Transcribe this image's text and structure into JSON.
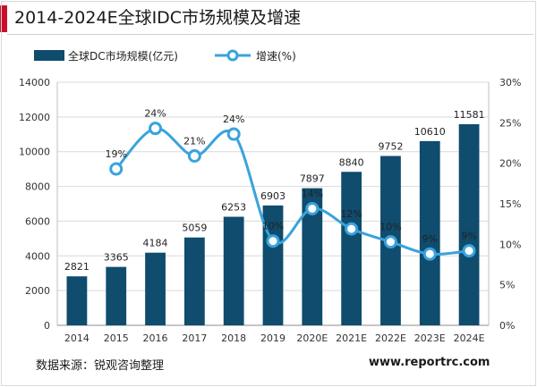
{
  "title": "2014-2024E全球IDC市场规模及增速",
  "footer": {
    "source": "数据来源：锐观咨询整理",
    "website": "www.reportrc.com"
  },
  "colors": {
    "bar": "#0f4c6e",
    "line": "#39a3dc",
    "accent": "#c8102e"
  },
  "chart_data": {
    "type": "bar",
    "categories": [
      "2014",
      "2015",
      "2016",
      "2017",
      "2018",
      "2019",
      "2020E",
      "2021E",
      "2022E",
      "2023E",
      "2024E"
    ],
    "series": [
      {
        "name": "全球DC市场规模(亿元)",
        "kind": "bar",
        "axis": "left",
        "values": [
          2821,
          3365,
          4184,
          5059,
          6253,
          6903,
          7897,
          8840,
          9752,
          10610,
          11581
        ],
        "labels": [
          "2821",
          "3365",
          "4184",
          "5059",
          "6253",
          "6903",
          "7897",
          "8840",
          "9752",
          "10610",
          "11581"
        ]
      },
      {
        "name": "增速(%)",
        "kind": "line",
        "axis": "right",
        "values": [
          null,
          19.3,
          24.3,
          20.9,
          23.6,
          10.4,
          14.4,
          11.9,
          10.3,
          8.8,
          9.2
        ],
        "labels": [
          "",
          "19%",
          "24%",
          "21%",
          "24%",
          "10%",
          "14%",
          "12%",
          "10%",
          "9%",
          "9%"
        ]
      }
    ],
    "y_left": {
      "min": 0,
      "max": 14000,
      "ticks": [
        "0",
        "2000",
        "4000",
        "6000",
        "8000",
        "10000",
        "12000",
        "14000"
      ]
    },
    "y_right": {
      "min": 0,
      "max": 30,
      "ticks": [
        "0%",
        "5%",
        "10%",
        "15%",
        "20%",
        "25%",
        "30%"
      ]
    },
    "grid": true,
    "legend_position": "top"
  }
}
